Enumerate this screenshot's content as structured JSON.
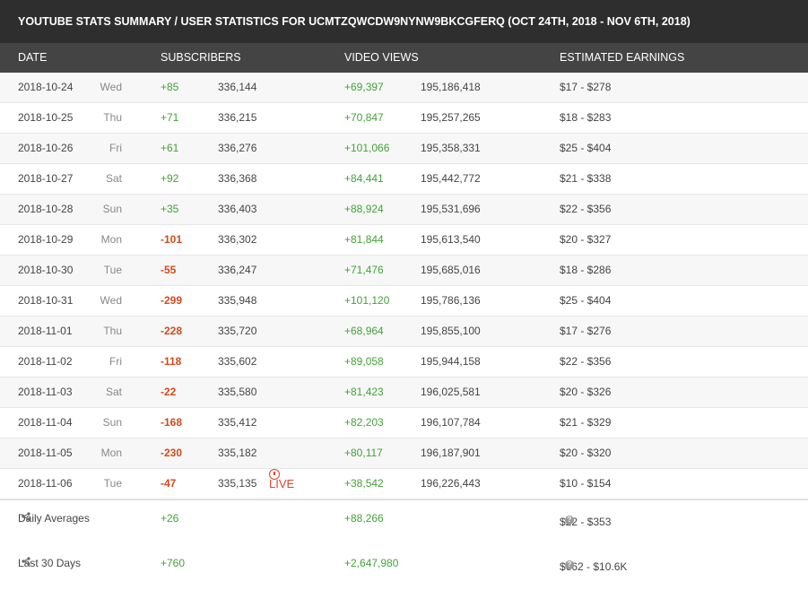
{
  "title": "YOUTUBE STATS SUMMARY / USER STATISTICS FOR UCMTZQWCDW9NYNW9BKCGFERQ (OCT 24TH, 2018 - NOV 6TH, 2018)",
  "headers": {
    "date": "DATE",
    "subscribers": "SUBSCRIBERS",
    "video_views": "VIDEO VIEWS",
    "earnings": "ESTIMATED EARNINGS"
  },
  "rows": [
    {
      "date": "2018-10-24",
      "day": "Wed",
      "sub_change": "+85",
      "subs": "336,144",
      "view_change": "+69,397",
      "views": "195,186,418",
      "earnings": "$17  -  $278"
    },
    {
      "date": "2018-10-25",
      "day": "Thu",
      "sub_change": "+71",
      "subs": "336,215",
      "view_change": "+70,847",
      "views": "195,257,265",
      "earnings": "$18  -  $283"
    },
    {
      "date": "2018-10-26",
      "day": "Fri",
      "sub_change": "+61",
      "subs": "336,276",
      "view_change": "+101,066",
      "views": "195,358,331",
      "earnings": "$25  -  $404"
    },
    {
      "date": "2018-10-27",
      "day": "Sat",
      "sub_change": "+92",
      "subs": "336,368",
      "view_change": "+84,441",
      "views": "195,442,772",
      "earnings": "$21  -  $338"
    },
    {
      "date": "2018-10-28",
      "day": "Sun",
      "sub_change": "+35",
      "subs": "336,403",
      "view_change": "+88,924",
      "views": "195,531,696",
      "earnings": "$22  -  $356"
    },
    {
      "date": "2018-10-29",
      "day": "Mon",
      "sub_change": "-101",
      "subs": "336,302",
      "view_change": "+81,844",
      "views": "195,613,540",
      "earnings": "$20  -  $327"
    },
    {
      "date": "2018-10-30",
      "day": "Tue",
      "sub_change": "-55",
      "subs": "336,247",
      "view_change": "+71,476",
      "views": "195,685,016",
      "earnings": "$18  -  $286"
    },
    {
      "date": "2018-10-31",
      "day": "Wed",
      "sub_change": "-299",
      "subs": "335,948",
      "view_change": "+101,120",
      "views": "195,786,136",
      "earnings": "$25  -  $404"
    },
    {
      "date": "2018-11-01",
      "day": "Thu",
      "sub_change": "-228",
      "subs": "335,720",
      "view_change": "+68,964",
      "views": "195,855,100",
      "earnings": "$17  -  $276"
    },
    {
      "date": "2018-11-02",
      "day": "Fri",
      "sub_change": "-118",
      "subs": "335,602",
      "view_change": "+89,058",
      "views": "195,944,158",
      "earnings": "$22  -  $356"
    },
    {
      "date": "2018-11-03",
      "day": "Sat",
      "sub_change": "-22",
      "subs": "335,580",
      "view_change": "+81,423",
      "views": "196,025,581",
      "earnings": "$20  -  $326"
    },
    {
      "date": "2018-11-04",
      "day": "Sun",
      "sub_change": "-168",
      "subs": "335,412",
      "view_change": "+82,203",
      "views": "196,107,784",
      "earnings": "$21  -  $329"
    },
    {
      "date": "2018-11-05",
      "day": "Mon",
      "sub_change": "-230",
      "subs": "335,182",
      "view_change": "+80,117",
      "views": "196,187,901",
      "earnings": "$20  -  $320"
    },
    {
      "date": "2018-11-06",
      "day": "Tue",
      "sub_change": "-47",
      "subs": "335,135",
      "view_change": "+38,542",
      "views": "196,226,443",
      "earnings": "$10  -  $154",
      "live": "LIVE"
    }
  ],
  "summary": [
    {
      "label": "Daily Averages",
      "subs": "+26",
      "views": "+88,266",
      "earnings": "$22  -  $353"
    },
    {
      "label": "Last 30 Days",
      "subs": "+760",
      "views": "+2,647,980",
      "earnings": "$662  -  $10.6K"
    }
  ],
  "icons": {
    "share": "share-icon",
    "help": "help-icon",
    "live": "clock-icon"
  },
  "colors": {
    "positive": "#43a23a",
    "negative": "#d34a1a",
    "live": "#e0452c",
    "header_bg": "#444444",
    "title_bg": "#2e2e2e"
  }
}
